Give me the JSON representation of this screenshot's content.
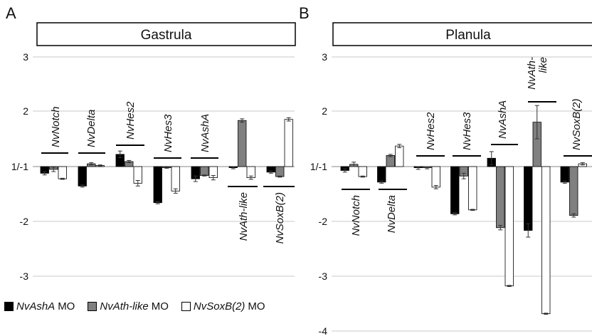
{
  "chart_data": [
    {
      "type": "bar",
      "panel_letter": "A",
      "title": "Gastrula",
      "ylim": [
        -3,
        3
      ],
      "y_ticks": [
        "-3",
        "-2",
        "1/-1",
        "2",
        "3"
      ],
      "grid": true,
      "categories": [
        "NvNotch",
        "NvDelta",
        "NvHes2",
        "NvHes3",
        "NvAshA",
        "NvAth-like",
        "NvSoxB(2)"
      ],
      "series": [
        {
          "name": "NvAshAMO",
          "color": "#000000",
          "values": [
            -1.12,
            -1.35,
            1.22,
            -1.65,
            -1.22,
            -1.02,
            -1.1
          ],
          "errors": [
            0.03,
            0.02,
            0.06,
            0.02,
            0.05,
            0.02,
            0.02
          ]
        },
        {
          "name": "NvAth-likeMO",
          "color": "#808080",
          "values": [
            -1.05,
            1.05,
            1.09,
            -1.02,
            -1.16,
            1.83,
            -1.18
          ],
          "errors": [
            0.04,
            0.02,
            0.02,
            0.01,
            0.01,
            0.03,
            0.01
          ]
        },
        {
          "name": "NvSoxB(2)MO",
          "color": "#ffffff",
          "values": [
            -1.22,
            1.02,
            -1.3,
            -1.44,
            -1.2,
            -1.2,
            1.85
          ],
          "errors": [
            0.01,
            0.01,
            0.05,
            0.04,
            0.04,
            0.03,
            0.03
          ]
        }
      ]
    },
    {
      "type": "bar",
      "panel_letter": "B",
      "title": "Planula",
      "ylim": [
        -4,
        3
      ],
      "y_ticks": [
        "-4",
        "-3",
        "-2",
        "1/-1",
        "2",
        "3"
      ],
      "grid": true,
      "categories": [
        "NvNotch",
        "NvDelta",
        "NvHes2",
        "NvHes3",
        "NvAshA",
        "NvAth-like",
        "NvSoxB(2)"
      ],
      "series": [
        {
          "name": "NvAshAMO",
          "color": "#000000",
          "values": [
            -1.07,
            -1.28,
            -1.02,
            -1.85,
            1.15,
            -2.15,
            -1.28
          ],
          "errors": [
            0.03,
            0.02,
            0.03,
            0.02,
            0.12,
            0.12,
            0.02
          ]
        },
        {
          "name": "NvAth-likeMO",
          "color": "#808080",
          "values": [
            1.04,
            1.2,
            -1.02,
            -1.17,
            -2.1,
            1.8,
            -1.88
          ],
          "errors": [
            0.04,
            0.02,
            0.02,
            0.05,
            0.04,
            0.3,
            0.03
          ]
        },
        {
          "name": "NvSoxB(2)MO",
          "color": "#ffffff",
          "values": [
            -1.18,
            1.37,
            -1.37,
            -1.78,
            -3.15,
            -3.65,
            1.05
          ],
          "errors": [
            0.01,
            0.03,
            0.03,
            0.01,
            0.01,
            0.01,
            0.02
          ]
        }
      ]
    }
  ],
  "legend": [
    {
      "label": "NvAshA",
      "suffix": "MO",
      "color": "#000000"
    },
    {
      "label": "NvAth-like",
      "suffix": "MO",
      "color": "#808080"
    },
    {
      "label": "NvSoxB(2)",
      "suffix": "MO",
      "color": "#ffffff"
    }
  ]
}
